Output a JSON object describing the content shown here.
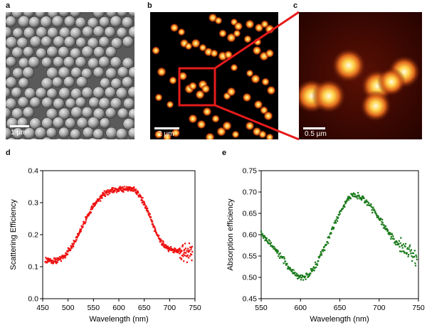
{
  "panels": {
    "a": {
      "letter": "a",
      "scale_label": "1 µm"
    },
    "b": {
      "letter": "b",
      "scale_label": "2 µm"
    },
    "c": {
      "letter": "c",
      "scale_label": "0.5 µm"
    },
    "d": {
      "letter": "d"
    },
    "e": {
      "letter": "e"
    }
  },
  "colors": {
    "scatter": "#ee1111",
    "absorb": "#1a7a1a",
    "highlight": "#ee1111"
  },
  "chart_data": [
    {
      "type": "scatter",
      "series": [
        {
          "name": "",
          "x": [],
          "y": []
        }
      ],
      "xlabel": "Wavelength (nm)",
      "ylabel": "Scattering Efficiency",
      "xlim": [
        450,
        750
      ],
      "ylim": [
        0.0,
        0.4
      ],
      "xticks": [
        450,
        500,
        550,
        600,
        650,
        700,
        750
      ],
      "yticks": [
        0.0,
        0.1,
        0.2,
        0.3,
        0.4
      ],
      "curve": {
        "x_start": 455,
        "x_end": 745,
        "points": [
          [
            455,
            0.12
          ],
          [
            470,
            0.118
          ],
          [
            480,
            0.12
          ],
          [
            490,
            0.13
          ],
          [
            500,
            0.148
          ],
          [
            510,
            0.17
          ],
          [
            520,
            0.2
          ],
          [
            530,
            0.232
          ],
          [
            540,
            0.264
          ],
          [
            550,
            0.29
          ],
          [
            560,
            0.31
          ],
          [
            570,
            0.325
          ],
          [
            580,
            0.335
          ],
          [
            590,
            0.34
          ],
          [
            600,
            0.342
          ],
          [
            610,
            0.344
          ],
          [
            620,
            0.345
          ],
          [
            630,
            0.34
          ],
          [
            640,
            0.325
          ],
          [
            650,
            0.297
          ],
          [
            660,
            0.262
          ],
          [
            670,
            0.22
          ],
          [
            680,
            0.185
          ],
          [
            690,
            0.165
          ],
          [
            700,
            0.155
          ],
          [
            710,
            0.15
          ],
          [
            720,
            0.148
          ],
          [
            730,
            0.146
          ],
          [
            740,
            0.145
          ],
          [
            745,
            0.145
          ]
        ]
      },
      "noise": 0.006,
      "tail_noise_start": 720,
      "tail_noise": 0.018,
      "grid": false
    },
    {
      "type": "scatter",
      "series": [
        {
          "name": "",
          "x": [],
          "y": []
        }
      ],
      "xlabel": "Wavelength (nm)",
      "ylabel": "Absorption efficiency",
      "xlim": [
        550,
        750
      ],
      "ylim": [
        0.45,
        0.75
      ],
      "xticks": [
        550,
        600,
        650,
        700,
        750
      ],
      "yticks": [
        0.45,
        0.5,
        0.55,
        0.6,
        0.65,
        0.7,
        0.75
      ],
      "curve": {
        "x_start": 550,
        "x_end": 748,
        "points": [
          [
            550,
            0.605
          ],
          [
            560,
            0.582
          ],
          [
            570,
            0.56
          ],
          [
            580,
            0.536
          ],
          [
            590,
            0.512
          ],
          [
            600,
            0.5
          ],
          [
            610,
            0.505
          ],
          [
            620,
            0.53
          ],
          [
            630,
            0.568
          ],
          [
            640,
            0.61
          ],
          [
            650,
            0.652
          ],
          [
            660,
            0.684
          ],
          [
            665,
            0.692
          ],
          [
            670,
            0.692
          ],
          [
            680,
            0.683
          ],
          [
            690,
            0.665
          ],
          [
            700,
            0.64
          ],
          [
            710,
            0.61
          ],
          [
            720,
            0.585
          ],
          [
            730,
            0.57
          ],
          [
            740,
            0.555
          ],
          [
            748,
            0.54
          ]
        ]
      },
      "noise": 0.005,
      "tail_noise_start": 725,
      "tail_noise": 0.015,
      "grid": false
    }
  ]
}
